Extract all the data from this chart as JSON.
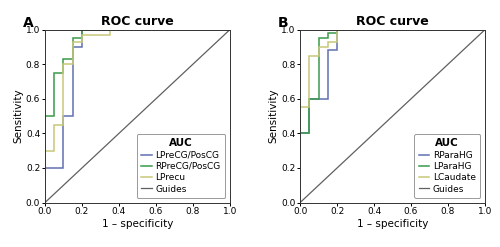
{
  "title": "ROC curve",
  "xlabel": "1 – specificity",
  "ylabel": "Sensitivity",
  "panel_A_label": "A",
  "panel_B_label": "B",
  "A_curves": {
    "LPreCG_PosCG": {
      "x": [
        0.0,
        0.0,
        0.1,
        0.1,
        0.15,
        0.15,
        0.2,
        0.2,
        1.0
      ],
      "y": [
        0.0,
        0.2,
        0.2,
        0.5,
        0.5,
        0.9,
        0.9,
        1.0,
        1.0
      ],
      "color": "#6070b0",
      "label": "LPreCG/PosCG"
    },
    "RPreCG_PosCG": {
      "x": [
        0.0,
        0.0,
        0.05,
        0.05,
        0.1,
        0.1,
        0.15,
        0.15,
        0.2,
        0.2,
        1.0
      ],
      "y": [
        0.0,
        0.5,
        0.5,
        0.75,
        0.75,
        0.83,
        0.83,
        0.95,
        0.95,
        1.0,
        1.0
      ],
      "color": "#3a9a4a",
      "label": "RPreCG/PosCG"
    },
    "LPrecu": {
      "x": [
        0.0,
        0.0,
        0.05,
        0.05,
        0.1,
        0.1,
        0.15,
        0.15,
        0.2,
        0.2,
        0.35,
        0.35,
        1.0
      ],
      "y": [
        0.0,
        0.3,
        0.3,
        0.45,
        0.45,
        0.8,
        0.8,
        0.93,
        0.93,
        0.97,
        0.97,
        1.0,
        1.0
      ],
      "color": "#c8c87a",
      "label": "LPrecu"
    }
  },
  "B_curves": {
    "RParaHG": {
      "x": [
        0.0,
        0.0,
        0.05,
        0.05,
        0.15,
        0.15,
        0.2,
        0.2,
        0.55,
        0.55,
        1.0
      ],
      "y": [
        0.0,
        0.4,
        0.4,
        0.6,
        0.6,
        0.88,
        0.88,
        1.0,
        1.0,
        1.0,
        1.0
      ],
      "color": "#6070b0",
      "label": "RParaHG"
    },
    "LParaHG": {
      "x": [
        0.0,
        0.0,
        0.05,
        0.05,
        0.1,
        0.1,
        0.15,
        0.15,
        0.2,
        0.2,
        0.55,
        0.55,
        1.0
      ],
      "y": [
        0.0,
        0.4,
        0.4,
        0.6,
        0.6,
        0.95,
        0.95,
        0.98,
        0.98,
        1.0,
        1.0,
        1.0,
        1.0
      ],
      "color": "#3a9a4a",
      "label": "LParaHG"
    },
    "LCaudate": {
      "x": [
        0.0,
        0.0,
        0.05,
        0.05,
        0.1,
        0.1,
        0.15,
        0.15,
        0.2,
        0.2,
        1.0
      ],
      "y": [
        0.0,
        0.55,
        0.55,
        0.85,
        0.85,
        0.9,
        0.9,
        0.93,
        0.93,
        1.0,
        1.0
      ],
      "color": "#c8c87a",
      "label": "LCaudate"
    }
  },
  "guide_color": "#606060",
  "guide_label": "Guides",
  "tick_labels": [
    "0.0",
    "0.2",
    "0.4",
    "0.6",
    "0.8",
    "1.0"
  ],
  "tick_vals": [
    0.0,
    0.2,
    0.4,
    0.6,
    0.8,
    1.0
  ],
  "legend_title": "AUC",
  "legend_title_fontsize": 7.5,
  "legend_fontsize": 6.5,
  "axis_label_fontsize": 7.5,
  "tick_fontsize": 6.5,
  "title_fontsize": 9,
  "panel_label_fontsize": 10,
  "figsize": [
    5.0,
    2.47
  ],
  "dpi": 100
}
